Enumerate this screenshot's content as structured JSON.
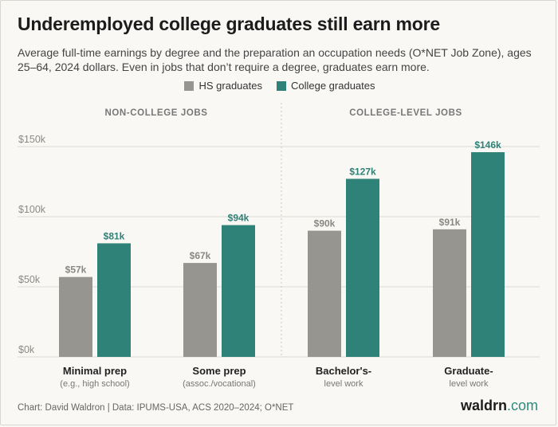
{
  "title": "Underemployed college graduates still earn more",
  "subtitle": "Average full-time earnings by degree and the preparation an occupation needs (O*NET Job Zone), ages 25–64, 2024 dollars. Even in jobs that don’t require a degree, graduates earn more.",
  "colors": {
    "hs": "#979590",
    "college": "#2e8277",
    "grid": "#dcdad4",
    "label_hs": "#8a8883",
    "label_college": "#2e8277"
  },
  "chart_data": {
    "type": "bar",
    "groups": [
      "NON-COLLEGE JOBS",
      "COLLEGE-LEVEL JOBS"
    ],
    "categories": [
      {
        "name": "Minimal prep",
        "sub": "(e.g., high school)"
      },
      {
        "name": "Some prep",
        "sub": "(assoc./vocational)"
      },
      {
        "name": "Bachelor's-",
        "sub": "level work"
      },
      {
        "name": "Graduate-",
        "sub": "level work"
      }
    ],
    "series": [
      {
        "name": "HS graduates",
        "values": [
          57,
          67,
          90,
          91
        ],
        "labels": [
          "$57k",
          "$67k",
          "$90k",
          "$91k"
        ]
      },
      {
        "name": "College graduates",
        "values": [
          81,
          94,
          127,
          146
        ],
        "labels": [
          "$81k",
          "$94k",
          "$127k",
          "$146k"
        ]
      }
    ],
    "yticks": [
      "$0k",
      "$50k",
      "$100k",
      "$150k"
    ],
    "ytick_values": [
      0,
      50,
      100,
      150
    ],
    "ylim": [
      0,
      150
    ],
    "grid": true,
    "legend_position": "top"
  },
  "footer": {
    "credit": "Chart: David Waldron | Data: IPUMS-USA, ACS 2020–2024; O*NET",
    "brand_name": "waldrn",
    "brand_domain": ".com"
  }
}
